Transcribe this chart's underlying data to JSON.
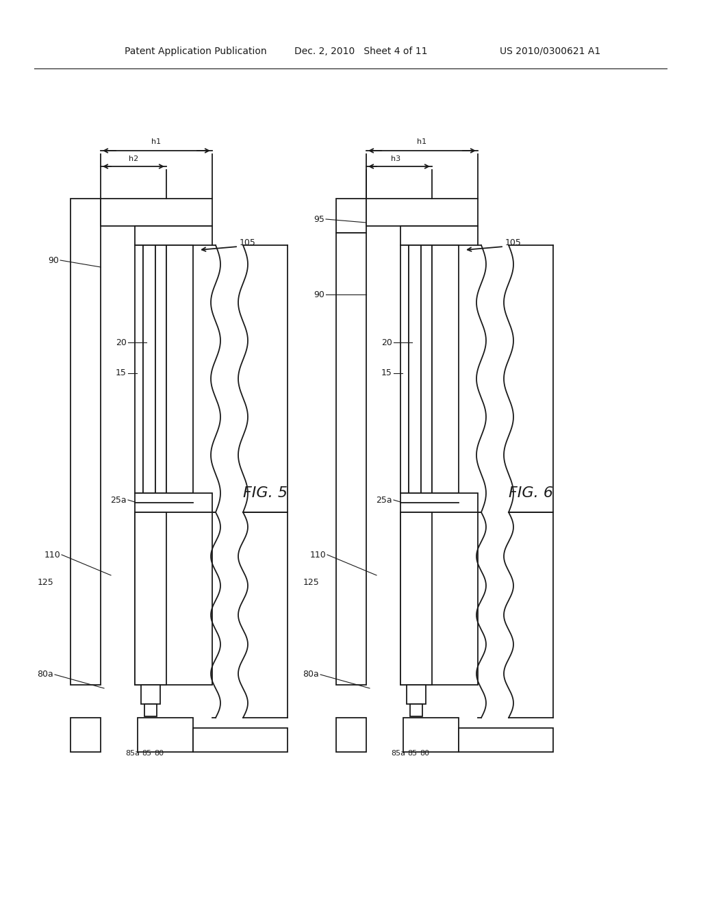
{
  "header_left": "Patent Application Publication",
  "header_mid": "Dec. 2, 2010   Sheet 4 of 11",
  "header_right": "US 2010/0300621 A1",
  "bg_color": "#ffffff",
  "line_color": "#1a1a1a",
  "lw": 1.3
}
